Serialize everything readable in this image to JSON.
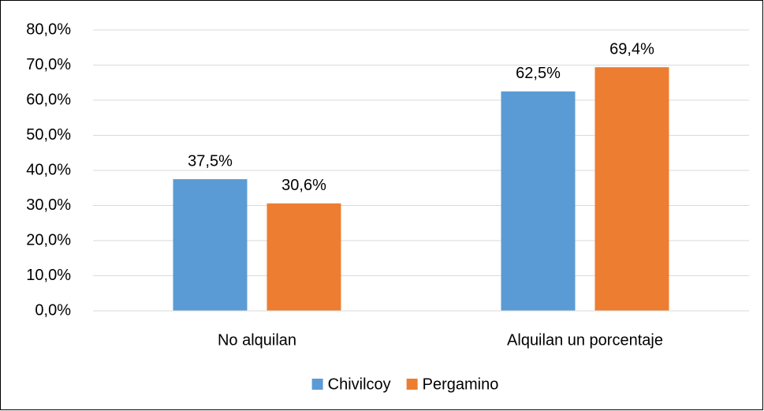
{
  "chart_data": {
    "type": "bar",
    "categories": [
      "No alquilan",
      "Alquilan un porcentaje"
    ],
    "series": [
      {
        "name": "Chivilcoy",
        "color": "#5b9bd5",
        "values": [
          37.5,
          62.5
        ],
        "value_labels": [
          "37,5%",
          "62,5%"
        ]
      },
      {
        "name": "Pergamino",
        "color": "#ed7d31",
        "values": [
          30.6,
          69.4
        ],
        "value_labels": [
          "30,6%",
          "69,4%"
        ]
      }
    ],
    "ylim": [
      0,
      80
    ],
    "yticks": [
      {
        "value": 0,
        "label": "0,0%"
      },
      {
        "value": 10,
        "label": "10,0%"
      },
      {
        "value": 20,
        "label": "20,0%"
      },
      {
        "value": 30,
        "label": "30,0%"
      },
      {
        "value": 40,
        "label": "40,0%"
      },
      {
        "value": 50,
        "label": "50,0%"
      },
      {
        "value": 60,
        "label": "60,0%"
      },
      {
        "value": 70,
        "label": "70,0%"
      },
      {
        "value": 80,
        "label": "80,0%"
      }
    ],
    "grid": true,
    "legend": "bottom"
  }
}
